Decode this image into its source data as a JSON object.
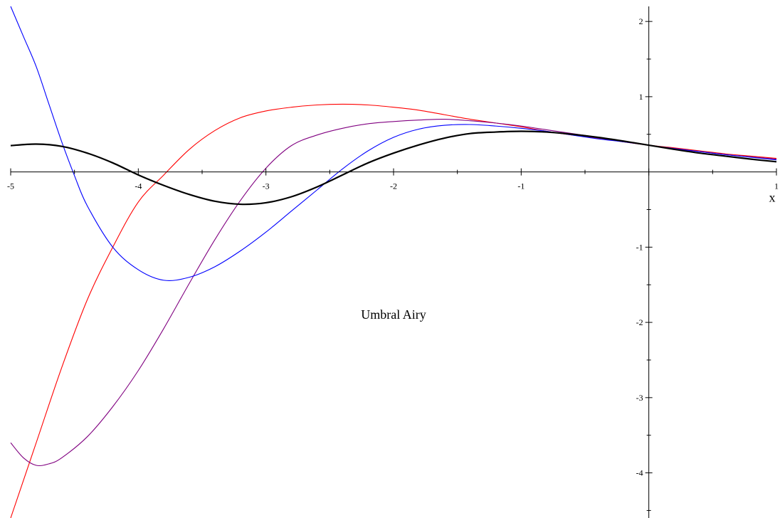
{
  "chart_data": {
    "type": "line",
    "title": "",
    "xlabel": "x",
    "ylabel": "",
    "annotation": "Umbral Airy",
    "xlim": [
      -5,
      1
    ],
    "ylim": [
      -4.6,
      2.2
    ],
    "x_ticks": [
      -5,
      -4,
      -3,
      -2,
      -1,
      1
    ],
    "x_tick_labels": [
      "-5",
      "-4",
      "-3",
      "-2",
      "-1",
      "1"
    ],
    "y_ticks": [
      2,
      1,
      -1,
      -2,
      -3,
      -4
    ],
    "y_tick_labels": [
      "2",
      "1",
      "-1",
      "-2",
      "-3",
      "-4"
    ],
    "grid": false,
    "legend": "none",
    "series": [
      {
        "color": "#000000",
        "stroke": "thick",
        "points": [
          [
            -5,
            0.35
          ],
          [
            -4.8,
            0.37
          ],
          [
            -4.6,
            0.34
          ],
          [
            -4.4,
            0.25
          ],
          [
            -4.2,
            0.12
          ],
          [
            -4,
            -0.04
          ],
          [
            -3.8,
            -0.18
          ],
          [
            -3.6,
            -0.3
          ],
          [
            -3.4,
            -0.39
          ],
          [
            -3.2,
            -0.43
          ],
          [
            -3,
            -0.41
          ],
          [
            -2.8,
            -0.33
          ],
          [
            -2.6,
            -0.2
          ],
          [
            -2.4,
            -0.04
          ],
          [
            -2.2,
            0.12
          ],
          [
            -2,
            0.25
          ],
          [
            -1.8,
            0.36
          ],
          [
            -1.6,
            0.45
          ],
          [
            -1.4,
            0.51
          ],
          [
            -1.2,
            0.53
          ],
          [
            -1,
            0.54
          ],
          [
            -0.8,
            0.53
          ],
          [
            -0.6,
            0.5
          ],
          [
            -0.4,
            0.46
          ],
          [
            -0.2,
            0.41
          ],
          [
            0,
            0.355
          ],
          [
            0.2,
            0.3
          ],
          [
            0.4,
            0.25
          ],
          [
            0.6,
            0.21
          ],
          [
            0.8,
            0.17
          ],
          [
            1,
            0.135
          ]
        ]
      },
      {
        "color": "#0000ff",
        "stroke": "thin",
        "points": [
          [
            -5,
            2.2
          ],
          [
            -4.9,
            1.8
          ],
          [
            -4.8,
            1.4
          ],
          [
            -4.7,
            0.9
          ],
          [
            -4.6,
            0.4
          ],
          [
            -4.5,
            -0.05
          ],
          [
            -4.4,
            -0.45
          ],
          [
            -4.2,
            -1.0
          ],
          [
            -4,
            -1.3
          ],
          [
            -3.8,
            -1.44
          ],
          [
            -3.6,
            -1.4
          ],
          [
            -3.4,
            -1.26
          ],
          [
            -3.2,
            -1.05
          ],
          [
            -3,
            -0.8
          ],
          [
            -2.8,
            -0.52
          ],
          [
            -2.6,
            -0.24
          ],
          [
            -2.4,
            0.04
          ],
          [
            -2.2,
            0.28
          ],
          [
            -2,
            0.46
          ],
          [
            -1.8,
            0.57
          ],
          [
            -1.6,
            0.62
          ],
          [
            -1.4,
            0.63
          ],
          [
            -1.2,
            0.61
          ],
          [
            -1,
            0.58
          ],
          [
            -0.8,
            0.54
          ],
          [
            -0.6,
            0.49
          ],
          [
            -0.4,
            0.44
          ],
          [
            -0.2,
            0.4
          ],
          [
            0,
            0.355
          ],
          [
            0.2,
            0.31
          ],
          [
            0.4,
            0.27
          ],
          [
            0.6,
            0.23
          ],
          [
            0.8,
            0.195
          ],
          [
            1,
            0.16
          ]
        ]
      },
      {
        "color": "#800080",
        "stroke": "thin",
        "points": [
          [
            -5,
            -3.6
          ],
          [
            -4.9,
            -3.8
          ],
          [
            -4.8,
            -3.9
          ],
          [
            -4.7,
            -3.88
          ],
          [
            -4.6,
            -3.8
          ],
          [
            -4.4,
            -3.52
          ],
          [
            -4.2,
            -3.12
          ],
          [
            -4,
            -2.64
          ],
          [
            -3.8,
            -2.08
          ],
          [
            -3.6,
            -1.48
          ],
          [
            -3.4,
            -0.9
          ],
          [
            -3.2,
            -0.38
          ],
          [
            -3,
            0.05
          ],
          [
            -2.8,
            0.35
          ],
          [
            -2.6,
            0.49
          ],
          [
            -2.4,
            0.58
          ],
          [
            -2.2,
            0.64
          ],
          [
            -2,
            0.67
          ],
          [
            -1.8,
            0.69
          ],
          [
            -1.6,
            0.7
          ],
          [
            -1.4,
            0.68
          ],
          [
            -1.2,
            0.65
          ],
          [
            -1,
            0.61
          ],
          [
            -0.8,
            0.56
          ],
          [
            -0.6,
            0.51
          ],
          [
            -0.4,
            0.46
          ],
          [
            -0.2,
            0.41
          ],
          [
            0,
            0.355
          ],
          [
            0.2,
            0.31
          ],
          [
            0.4,
            0.27
          ],
          [
            0.6,
            0.23
          ],
          [
            0.8,
            0.2
          ],
          [
            1,
            0.17
          ]
        ]
      },
      {
        "color": "#ff0000",
        "stroke": "thin",
        "points": [
          [
            -5,
            -4.6
          ],
          [
            -4.8,
            -3.6
          ],
          [
            -4.6,
            -2.6
          ],
          [
            -4.4,
            -1.7
          ],
          [
            -4.2,
            -1.0
          ],
          [
            -4,
            -0.4
          ],
          [
            -3.8,
            -0.04
          ],
          [
            -3.6,
            0.3
          ],
          [
            -3.4,
            0.55
          ],
          [
            -3.2,
            0.72
          ],
          [
            -3,
            0.81
          ],
          [
            -2.8,
            0.86
          ],
          [
            -2.6,
            0.89
          ],
          [
            -2.4,
            0.9
          ],
          [
            -2.2,
            0.89
          ],
          [
            -2,
            0.86
          ],
          [
            -1.8,
            0.82
          ],
          [
            -1.6,
            0.76
          ],
          [
            -1.4,
            0.7
          ],
          [
            -1.2,
            0.65
          ],
          [
            -1,
            0.6
          ],
          [
            -0.8,
            0.54
          ],
          [
            -0.6,
            0.49
          ],
          [
            -0.4,
            0.45
          ],
          [
            -0.2,
            0.4
          ],
          [
            0,
            0.355
          ],
          [
            0.2,
            0.32
          ],
          [
            0.4,
            0.28
          ],
          [
            0.6,
            0.24
          ],
          [
            0.8,
            0.21
          ],
          [
            1,
            0.18
          ]
        ]
      }
    ]
  }
}
